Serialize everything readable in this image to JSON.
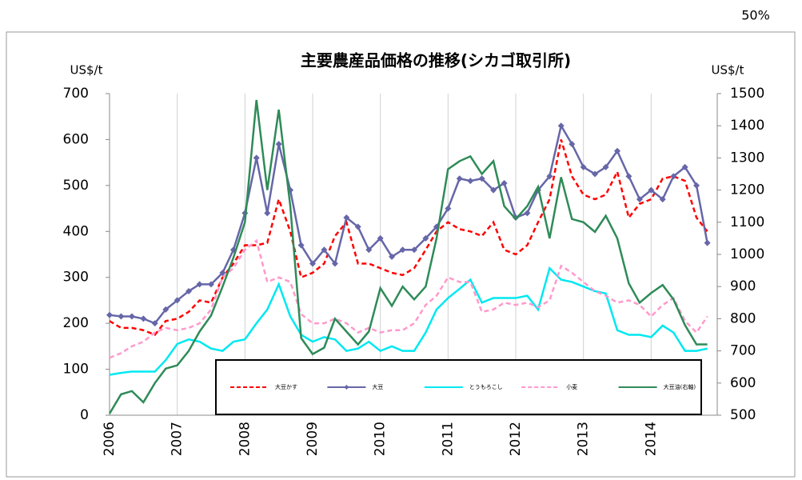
{
  "zoom_label": "50%",
  "chart_data": {
    "type": "line",
    "title": "主要農産品価格の推移(シカゴ取引所)",
    "y_label": "US$/t",
    "y2_label": "US$/t",
    "x": [
      2006,
      2006.17,
      2006.33,
      2006.5,
      2006.67,
      2006.83,
      2007,
      2007.17,
      2007.33,
      2007.5,
      2007.67,
      2007.83,
      2008,
      2008.17,
      2008.33,
      2008.5,
      2008.67,
      2008.83,
      2009,
      2009.17,
      2009.33,
      2009.5,
      2009.67,
      2009.83,
      2010,
      2010.17,
      2010.33,
      2010.5,
      2010.67,
      2010.83,
      2011,
      2011.17,
      2011.33,
      2011.5,
      2011.67,
      2011.83,
      2012,
      2012.17,
      2012.33,
      2012.5,
      2012.67,
      2012.83,
      2013,
      2013.17,
      2013.33,
      2013.5,
      2013.67,
      2013.83,
      2014,
      2014.17,
      2014.33,
      2014.5,
      2014.67,
      2014.83
    ],
    "xlim": [
      2006,
      2015
    ],
    "xticks": [
      2006,
      2007,
      2008,
      2009,
      2010,
      2011,
      2012,
      2013,
      2014
    ],
    "ylim": [
      0,
      700
    ],
    "yticks": [
      0,
      100,
      200,
      300,
      400,
      500,
      600,
      700
    ],
    "y2lim": [
      500,
      1500
    ],
    "y2ticks": [
      500,
      600,
      700,
      800,
      900,
      1000,
      1100,
      1200,
      1300,
      1400,
      1500
    ],
    "x_grid": true,
    "legend": "bottom",
    "series": [
      {
        "name": "大豆かす",
        "color": "#ff0000",
        "dash": true,
        "marker": "none",
        "values": [
          205,
          190,
          190,
          185,
          175,
          205,
          210,
          225,
          250,
          245,
          300,
          330,
          370,
          370,
          375,
          470,
          400,
          300,
          310,
          330,
          390,
          420,
          330,
          330,
          320,
          310,
          305,
          320,
          360,
          400,
          420,
          405,
          400,
          390,
          420,
          360,
          350,
          370,
          420,
          470,
          600,
          520,
          480,
          470,
          480,
          530,
          430,
          460,
          470,
          515,
          520,
          510,
          430,
          400
        ]
      },
      {
        "name": "大豆",
        "color": "#6666a8",
        "dash": false,
        "marker": "diamond",
        "values": [
          218,
          215,
          215,
          210,
          200,
          230,
          250,
          270,
          285,
          285,
          310,
          360,
          440,
          560,
          440,
          590,
          490,
          370,
          330,
          360,
          330,
          430,
          410,
          360,
          385,
          345,
          360,
          360,
          385,
          410,
          450,
          515,
          510,
          515,
          490,
          505,
          430,
          440,
          490,
          520,
          630,
          590,
          540,
          525,
          540,
          575,
          520,
          470,
          490,
          470,
          520,
          540,
          500,
          375
        ]
      },
      {
        "name": "とうもろこし",
        "color": "#00e8f0",
        "dash": false,
        "marker": "none",
        "values": [
          88,
          92,
          95,
          95,
          95,
          120,
          155,
          165,
          160,
          145,
          140,
          160,
          165,
          200,
          230,
          285,
          215,
          175,
          160,
          170,
          165,
          140,
          145,
          160,
          140,
          150,
          140,
          140,
          180,
          230,
          255,
          275,
          295,
          245,
          255,
          255,
          255,
          260,
          230,
          320,
          295,
          290,
          280,
          270,
          265,
          185,
          175,
          175,
          170,
          195,
          180,
          140,
          140,
          145
        ]
      },
      {
        "name": "小麦",
        "color": "#ff99cc",
        "dash": true,
        "marker": "none",
        "values": [
          125,
          135,
          150,
          160,
          180,
          190,
          185,
          190,
          200,
          230,
          300,
          320,
          360,
          380,
          290,
          300,
          290,
          220,
          200,
          200,
          210,
          200,
          180,
          190,
          180,
          185,
          185,
          200,
          240,
          260,
          300,
          290,
          290,
          225,
          230,
          245,
          240,
          245,
          235,
          250,
          325,
          310,
          290,
          270,
          260,
          245,
          250,
          240,
          215,
          240,
          255,
          205,
          180,
          215
        ]
      },
      {
        "name": "大豆油(右軸)",
        "color": "#2e8b57",
        "dash": false,
        "marker": "none",
        "axis": "y2",
        "values": [
          505,
          565,
          575,
          540,
          600,
          645,
          655,
          700,
          760,
          810,
          900,
          990,
          1100,
          1480,
          1200,
          1450,
          1150,
          740,
          690,
          710,
          800,
          760,
          720,
          760,
          895,
          840,
          900,
          860,
          900,
          1050,
          1265,
          1290,
          1305,
          1250,
          1290,
          1150,
          1110,
          1150,
          1210,
          1050,
          1240,
          1110,
          1100,
          1070,
          1120,
          1050,
          910,
          850,
          880,
          905,
          860,
          780,
          720,
          720
        ]
      }
    ]
  }
}
